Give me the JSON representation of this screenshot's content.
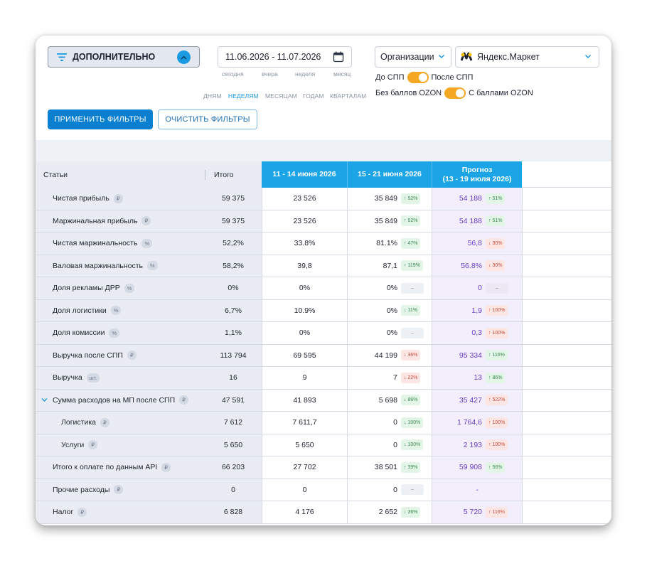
{
  "filters": {
    "more_label": "ДОПОЛНИТЕЛЬНО",
    "date_range": "11.06.2026 - 11.07.2026",
    "quick_dates": [
      "сегодня",
      "вчера",
      "неделя",
      "месяц"
    ],
    "periods": [
      "ДНЯМ",
      "НЕДЕЛЯМ",
      "МЕСЯЦАМ",
      "ГОДАМ",
      "КВАРТАЛАМ"
    ],
    "active_period": "НЕДЕЛЯМ",
    "org_label": "Организации",
    "marketplace": "Яндекс.Маркет",
    "spp_before": "До СПП",
    "spp_after": "После СПП",
    "ozon_without": "Без баллов OZON",
    "ozon_with": "С баллами OZON",
    "apply_label": "ПРИМЕНИТЬ ФИЛЬТРЫ",
    "clear_label": "ОЧИСТИТЬ ФИЛЬТРЫ",
    "accent_color": "#1ba4e6",
    "toggle_color": "#f5a623"
  },
  "table": {
    "headers": {
      "stat": "Статьи",
      "total": "Итого",
      "p1": "11 - 14 июня 2026",
      "p2": "15 - 21 июня 2026",
      "forecast_line1": "Прогноз",
      "forecast_line2": "(13 - 19 июля 2026)"
    },
    "rows": [
      {
        "name": "Чистая прибыль",
        "unit": "₽",
        "total": "59 375",
        "p1": "23 526",
        "p2": "35 849",
        "p2_badge": "↑ 52%",
        "p2_dir": "up",
        "f": "54 188",
        "f_badge": "↑ 51%",
        "f_dir": "up",
        "level": 0
      },
      {
        "name": "Маржинальная прибыль",
        "unit": "₽",
        "total": "59 375",
        "p1": "23 526",
        "p2": "35 849",
        "p2_badge": "↑ 52%",
        "p2_dir": "up",
        "f": "54 188",
        "f_badge": "↑ 51%",
        "f_dir": "up",
        "level": 0
      },
      {
        "name": "Чистая маржинальность",
        "unit": "%",
        "total": "52,2%",
        "p1": "33.8%",
        "p2": "81.1%",
        "p2_badge": "↑ 47%",
        "p2_dir": "up",
        "f": "56,8",
        "f_badge": "↓ 30%",
        "f_dir": "down",
        "level": 0
      },
      {
        "name": "Валовая маржинальность",
        "unit": "%",
        "total": "58,2%",
        "p1": "39,8",
        "p2": "87,1",
        "p2_badge": "↑ 119%",
        "p2_dir": "up",
        "f": "56.8%",
        "f_badge": "↓ 30%",
        "f_dir": "down",
        "level": 0
      },
      {
        "name": "Доля рекламы ДРР",
        "unit": "%",
        "total": "0%",
        "p1": "0%",
        "p2": "0%",
        "p2_badge": "–",
        "p2_dir": "zero",
        "f": "0",
        "f_badge": "–",
        "f_dir": "zero",
        "level": 0
      },
      {
        "name": "Доля логистики",
        "unit": "%",
        "total": "6,7%",
        "p1": "10.9%",
        "p2": "0%",
        "p2_badge": "↓ 11%",
        "p2_dir": "up",
        "f": "1,9",
        "f_badge": "↑ 100%",
        "f_dir": "down",
        "level": 0
      },
      {
        "name": "Доля комиссии",
        "unit": "%",
        "total": "1,1%",
        "p1": "0%",
        "p2": "0%",
        "p2_badge": "–",
        "p2_dir": "zero",
        "f": "0,3",
        "f_badge": "↑ 100%",
        "f_dir": "down",
        "level": 0
      },
      {
        "name": "Выручка после СПП",
        "unit": "₽",
        "total": "113 794",
        "p1": "69 595",
        "p2": "44 199",
        "p2_badge": "↓ 36%",
        "p2_dir": "down",
        "f": "95 334",
        "f_badge": "↑ 116%",
        "f_dir": "up",
        "level": 0
      },
      {
        "name": "Выручка",
        "unit": "шт.",
        "total": "16",
        "p1": "9",
        "p2": "7",
        "p2_badge": "↓ 22%",
        "p2_dir": "down",
        "f": "13",
        "f_badge": "↑ 86%",
        "f_dir": "up",
        "level": 0
      },
      {
        "name": "Сумма расходов на МП после СПП",
        "unit": "₽",
        "total": "47 591",
        "p1": "41 893",
        "p2": "5 698",
        "p2_badge": "↓ 86%",
        "p2_dir": "up",
        "f": "35 427",
        "f_badge": "↑ 522%",
        "f_dir": "down",
        "level": 0,
        "expanded": true
      },
      {
        "name": "Логистика",
        "unit": "₽",
        "total": "7 612",
        "p1": "7 611,7",
        "p2": "0",
        "p2_badge": "↓ 100%",
        "p2_dir": "up",
        "f": "1 764,6",
        "f_badge": "↑ 100%",
        "f_dir": "down",
        "level": 1
      },
      {
        "name": "Услуги",
        "unit": "₽",
        "total": "5 650",
        "p1": "5 650",
        "p2": "0",
        "p2_badge": "↓ 100%",
        "p2_dir": "up",
        "f": "2 193",
        "f_badge": "↑ 100%",
        "f_dir": "down",
        "level": 1
      },
      {
        "name": "Итого к оплате по данным API",
        "unit": "₽",
        "total": "66 203",
        "p1": "27 702",
        "p2": "38 501",
        "p2_badge": "↑ 39%",
        "p2_dir": "up",
        "f": "59 908",
        "f_badge": "↑ 56%",
        "f_dir": "up",
        "level": 0
      },
      {
        "name": "Прочие расходы",
        "unit": "₽",
        "total": "0",
        "p1": "0",
        "p2": "0",
        "p2_badge": "–",
        "p2_dir": "zero",
        "f": "-",
        "f_badge": "",
        "f_dir": "none",
        "level": 0
      },
      {
        "name": "Налог",
        "unit": "₽",
        "total": "6 828",
        "p1": "4 176",
        "p2": "2 652",
        "p2_badge": "↓ 36%",
        "p2_dir": "up",
        "f": "5 720",
        "f_badge": "↑ 116%",
        "f_dir": "down",
        "level": 0
      }
    ]
  }
}
